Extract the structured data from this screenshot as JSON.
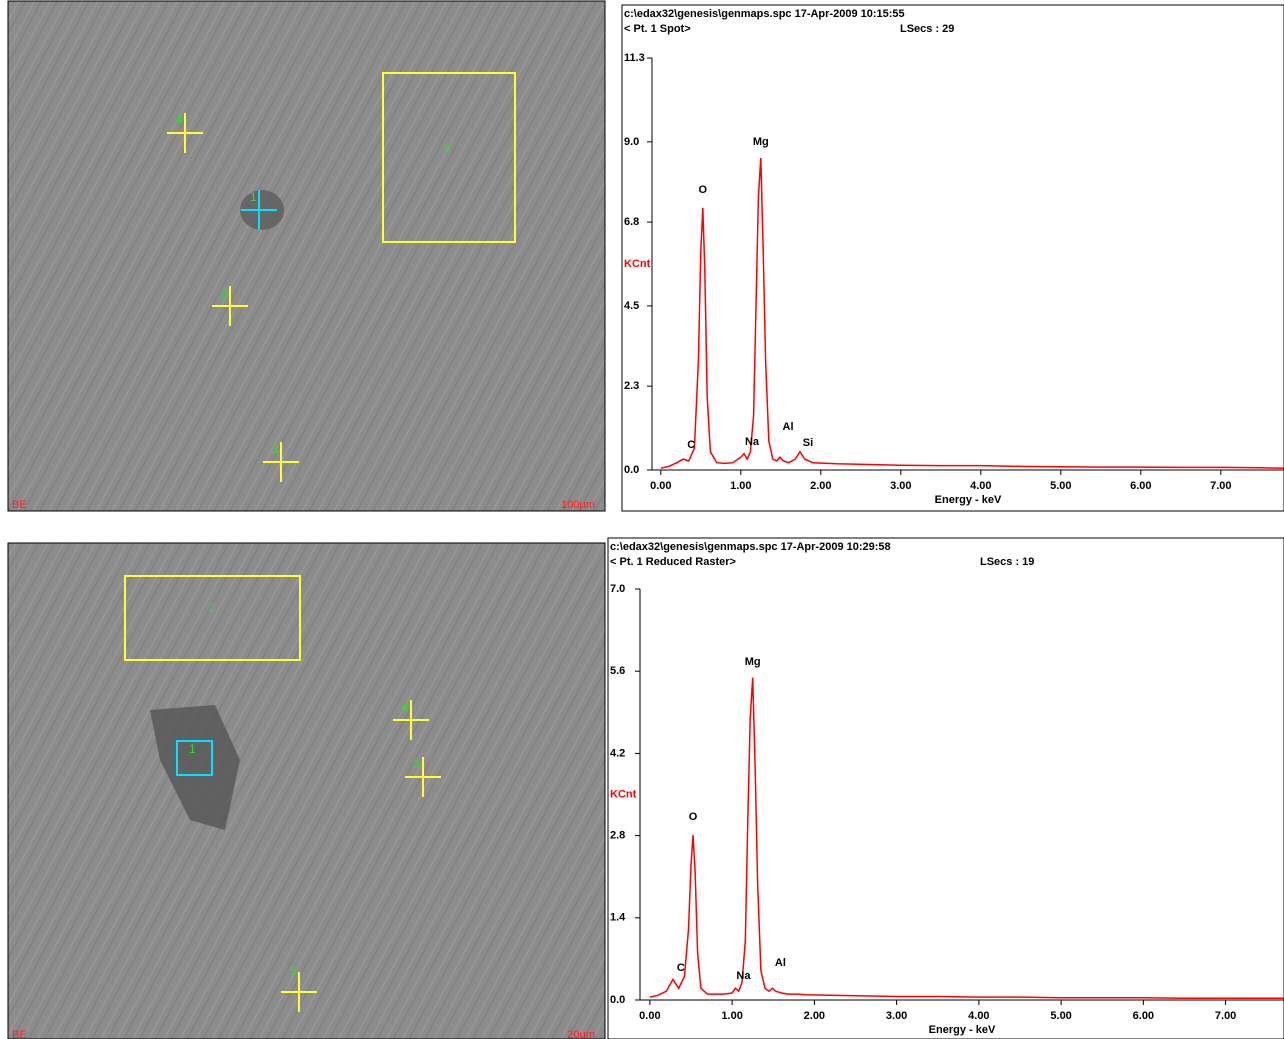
{
  "chart_data": [
    {
      "type": "line",
      "title": "c:\\edax32\\genesis\\genmaps.spc  17-Apr-2009 10:15:55",
      "subtitle": "< Pt.  1 Spot>",
      "lsecs": "LSecs :  29",
      "x_label": "Energy - keV",
      "y_label": "KCnt",
      "color": "#ff0000",
      "x": [
        0.0,
        0.1,
        0.2,
        0.28,
        0.35,
        0.42,
        0.47,
        0.5,
        0.525,
        0.55,
        0.58,
        0.62,
        0.7,
        0.8,
        0.9,
        1.0,
        1.04,
        1.08,
        1.12,
        1.16,
        1.19,
        1.22,
        1.25,
        1.28,
        1.31,
        1.35,
        1.4,
        1.45,
        1.49,
        1.53,
        1.6,
        1.68,
        1.74,
        1.8,
        1.9,
        2.2,
        2.6,
        3.0,
        3.5,
        4.0,
        4.5,
        5.0,
        5.5,
        6.0,
        6.5,
        7.0,
        7.5,
        7.79
      ],
      "values": [
        0.05,
        0.1,
        0.2,
        0.3,
        0.25,
        0.6,
        3.0,
        6.0,
        7.19,
        5.5,
        2.0,
        0.5,
        0.2,
        0.18,
        0.2,
        0.35,
        0.45,
        0.3,
        0.5,
        1.5,
        4.5,
        7.5,
        8.56,
        6.0,
        3.0,
        0.8,
        0.3,
        0.25,
        0.35,
        0.25,
        0.2,
        0.3,
        0.5,
        0.3,
        0.2,
        0.17,
        0.15,
        0.13,
        0.12,
        0.12,
        0.1,
        0.09,
        0.08,
        0.08,
        0.07,
        0.07,
        0.06,
        0.05
      ],
      "xlim": [
        -0.11,
        7.79
      ],
      "ylim": [
        0,
        11.3
      ],
      "xticks": [
        {
          "value": 0,
          "label": "0.00"
        },
        {
          "value": 1,
          "label": "1.00"
        },
        {
          "value": 2,
          "label": "2.00"
        },
        {
          "value": 3,
          "label": "3.00"
        },
        {
          "value": 4,
          "label": "4.00"
        },
        {
          "value": 5,
          "label": "5.00"
        },
        {
          "value": 6,
          "label": "6.00"
        },
        {
          "value": 7,
          "label": "7.00"
        }
      ],
      "yticks": [
        {
          "value": 0,
          "label": "0.0"
        },
        2.3,
        4.5,
        6.8,
        {
          "value": 9,
          "label": "9.0"
        },
        11.3
      ],
      "annotations": [
        "C",
        "O",
        "Mg",
        "Na",
        "Al",
        "Si"
      ]
    },
    {
      "type": "line",
      "title": "c:\\edax32\\genesis\\genmaps.spc  17-Apr-2009 10:29:58",
      "subtitle": "< Pt.  1 Reduced Raster>",
      "lsecs": "LSecs :  19",
      "x_label": "Energy - keV",
      "y_label": "KCnt",
      "color": "#ff0000",
      "x": [
        0.0,
        0.1,
        0.2,
        0.28,
        0.35,
        0.42,
        0.47,
        0.5,
        0.525,
        0.55,
        0.58,
        0.62,
        0.7,
        0.8,
        0.9,
        1.0,
        1.04,
        1.08,
        1.12,
        1.16,
        1.19,
        1.22,
        1.25,
        1.28,
        1.31,
        1.35,
        1.4,
        1.45,
        1.49,
        1.53,
        1.6,
        1.68,
        1.74,
        1.8,
        1.9,
        2.2,
        2.6,
        3.0,
        3.5,
        4.0,
        4.5,
        5.0,
        5.5,
        6.0,
        6.5,
        7.0,
        7.5,
        7.71
      ],
      "values": [
        0.05,
        0.08,
        0.15,
        0.35,
        0.2,
        0.4,
        1.2,
        2.3,
        2.81,
        2.2,
        0.8,
        0.2,
        0.1,
        0.1,
        0.1,
        0.12,
        0.2,
        0.15,
        0.3,
        1.0,
        3.0,
        4.8,
        5.49,
        4.0,
        2.0,
        0.5,
        0.2,
        0.15,
        0.2,
        0.15,
        0.12,
        0.1,
        0.1,
        0.1,
        0.09,
        0.08,
        0.07,
        0.06,
        0.06,
        0.05,
        0.05,
        0.04,
        0.04,
        0.04,
        0.03,
        0.03,
        0.03,
        0.03
      ],
      "xlim": [
        -0.12,
        7.71
      ],
      "ylim": [
        0,
        7
      ],
      "xticks": [
        {
          "value": 0,
          "label": "0.00"
        },
        {
          "value": 1,
          "label": "1.00"
        },
        {
          "value": 2,
          "label": "2.00"
        },
        {
          "value": 3,
          "label": "3.00"
        },
        {
          "value": 4,
          "label": "4.00"
        },
        {
          "value": 5,
          "label": "5.00"
        },
        {
          "value": 6,
          "label": "6.00"
        },
        {
          "value": 7,
          "label": "7.00"
        }
      ],
      "yticks": [
        {
          "value": 0,
          "label": "0.0"
        },
        1.4,
        2.8,
        4.2,
        5.6,
        {
          "value": 7,
          "label": "7.0"
        }
      ],
      "annotations": [
        "C",
        "O",
        "Mg",
        "Na",
        "Al"
      ]
    }
  ],
  "images": [
    {
      "labels": [
        "1",
        "2",
        "3",
        "4",
        "5"
      ],
      "detector": "BE",
      "scale": "100µm"
    },
    {
      "labels": [
        "1",
        "2",
        "3",
        "4",
        "5"
      ],
      "detector": "BE",
      "scale": "20µm"
    }
  ]
}
